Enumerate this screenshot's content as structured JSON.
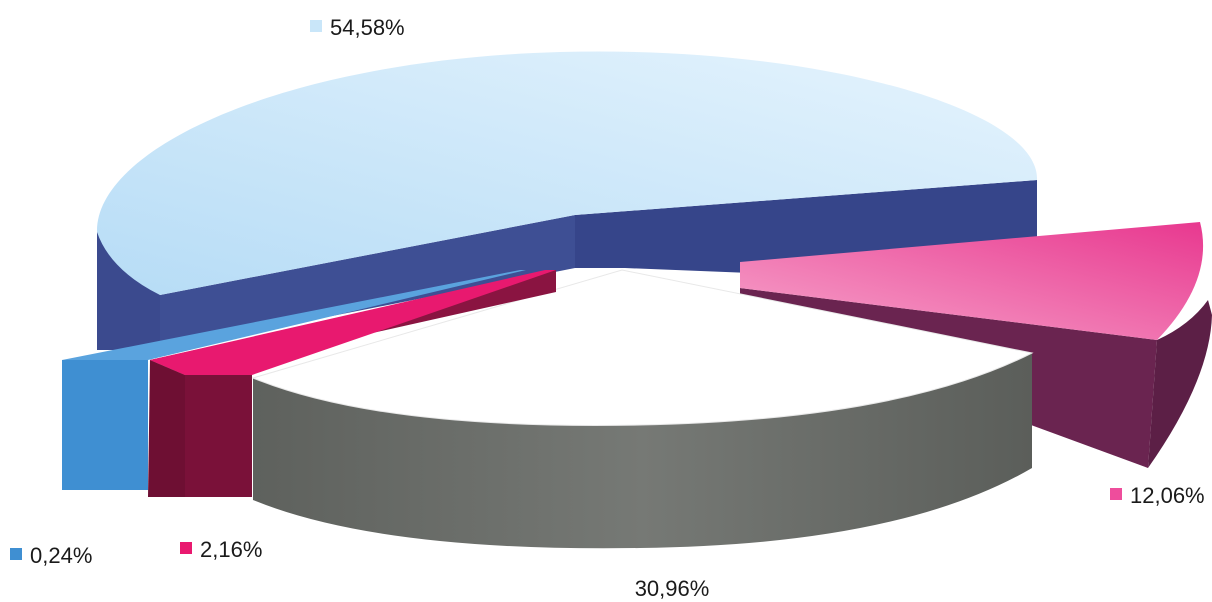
{
  "chart_data": {
    "type": "pie",
    "style": "3d-exploded",
    "legend": "none",
    "slices": [
      {
        "label": "54,58%",
        "value": 54.58,
        "color": "#c9e6f9",
        "side_color": "#3b4a8e"
      },
      {
        "label": "12,06%",
        "value": 12.06,
        "color": "#ee4d9c",
        "side_color": "#6a2450"
      },
      {
        "label": "30,96%",
        "value": 30.96,
        "color": "#ffffff",
        "side_color": "#6b6e6a"
      },
      {
        "label": "2,16%",
        "value": 2.16,
        "color": "#e9196f",
        "side_color": "#6e0f33"
      },
      {
        "label": "0,24%",
        "value": 0.24,
        "color": "#3f8fd2",
        "side_color": "#3f8fd2"
      }
    ]
  }
}
